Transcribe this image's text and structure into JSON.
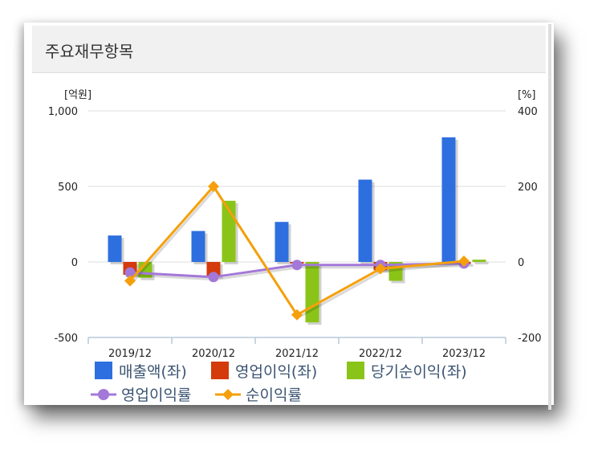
{
  "panel": {
    "title": "주요재무항목"
  },
  "chart_data": {
    "type": "bar",
    "categories": [
      "2019/12",
      "2020/12",
      "2021/12",
      "2022/12",
      "2023/12"
    ],
    "left_axis": {
      "unit_label": "[억원]",
      "range": [
        -500,
        1000
      ],
      "ticks": [
        "1,000",
        "500",
        "0",
        "-500"
      ],
      "tick_values": [
        1000,
        500,
        0,
        -500
      ]
    },
    "right_axis": {
      "unit_label": "[%]",
      "range": [
        -200,
        400
      ],
      "ticks": [
        "400",
        "200",
        "0",
        "-200"
      ],
      "tick_values": [
        400,
        200,
        0,
        -200
      ]
    },
    "grid": true,
    "legend_position": "bottom",
    "bar_series": [
      {
        "name": "매출액(좌)",
        "color": "#2e6fe0",
        "values": [
          175,
          205,
          265,
          545,
          825
        ]
      },
      {
        "name": "영업이익(좌)",
        "color": "#d43a0c",
        "values": [
          -85,
          -95,
          -10,
          -55,
          -15
        ]
      },
      {
        "name": "당기순이익(좌)",
        "color": "#8ac418",
        "values": [
          -105,
          405,
          -400,
          -125,
          15
        ]
      }
    ],
    "line_series": [
      {
        "name": "영업이익률",
        "color": "#a378d8",
        "marker": "circle",
        "values": [
          -28,
          -40,
          -8,
          -8,
          -4
        ]
      },
      {
        "name": "순이익률",
        "color": "#f5a00b",
        "marker": "diamond",
        "values": [
          -50,
          200,
          -140,
          -18,
          2
        ]
      }
    ]
  }
}
